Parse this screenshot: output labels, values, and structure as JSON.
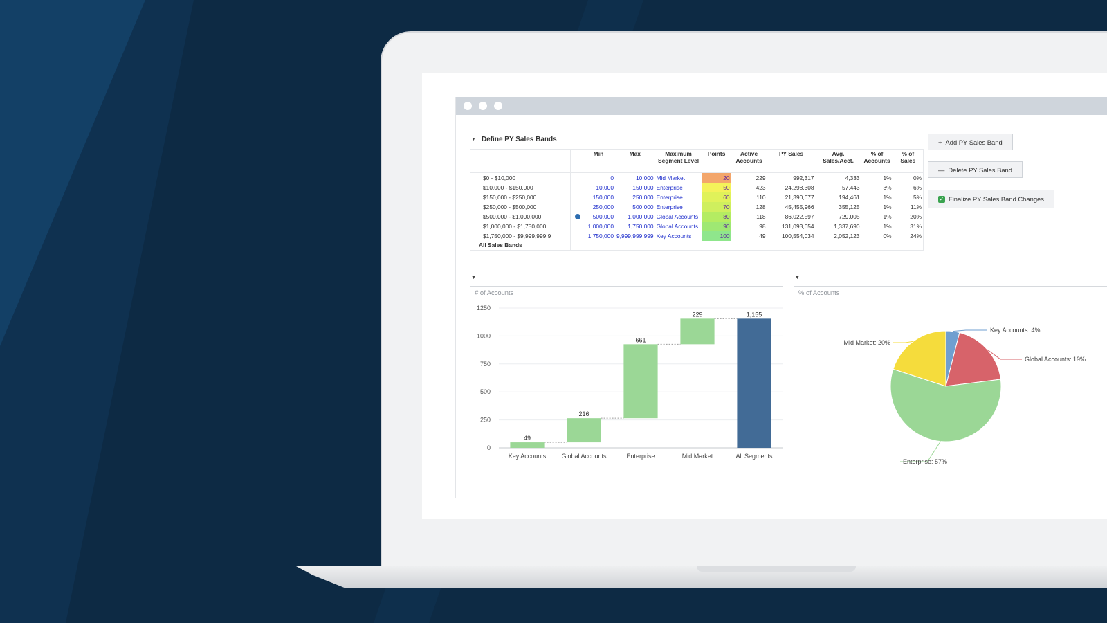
{
  "window": {
    "section_title": "Define PY Sales Bands"
  },
  "table": {
    "headers": [
      "",
      "",
      "Min",
      "Max",
      "Maximum Segment Level",
      "Points",
      "Active Accounts",
      "PY Sales",
      "Avg. Sales/Acct.",
      "% of Accounts",
      "% of Sales"
    ],
    "rows": [
      {
        "label": "$0 - $10,000",
        "min": "0",
        "max": "10,000",
        "segment": "Mid Market",
        "points": "20",
        "active": "229",
        "py_sales": "992,317",
        "avg": "4,333",
        "pct_acc": "1%",
        "pct_sales": "0%"
      },
      {
        "label": "$10,000 - $150,000",
        "min": "10,000",
        "max": "150,000",
        "segment": "Enterprise",
        "points": "50",
        "active": "423",
        "py_sales": "24,298,308",
        "avg": "57,443",
        "pct_acc": "3%",
        "pct_sales": "6%"
      },
      {
        "label": "$150,000 - $250,000",
        "min": "150,000",
        "max": "250,000",
        "segment": "Enterprise",
        "points": "60",
        "active": "110",
        "py_sales": "21,390,677",
        "avg": "194,461",
        "pct_acc": "1%",
        "pct_sales": "5%"
      },
      {
        "label": "$250,000 - $500,000",
        "min": "250,000",
        "max": "500,000",
        "segment": "Enterprise",
        "points": "70",
        "active": "128",
        "py_sales": "45,455,966",
        "avg": "355,125",
        "pct_acc": "1%",
        "pct_sales": "11%"
      },
      {
        "label": "$500,000 - $1,000,000",
        "min": "500,000",
        "max": "1,000,000",
        "segment": "Global Accounts",
        "points": "80",
        "active": "118",
        "py_sales": "86,022,597",
        "avg": "729,005",
        "pct_acc": "1%",
        "pct_sales": "20%"
      },
      {
        "label": "$1,000,000 - $1,750,000",
        "min": "1,000,000",
        "max": "1,750,000",
        "segment": "Global Accounts",
        "points": "90",
        "active": "98",
        "py_sales": "131,093,654",
        "avg": "1,337,690",
        "pct_acc": "1%",
        "pct_sales": "31%"
      },
      {
        "label": "$1,750,000 - $9,999,999,9",
        "min": "1,750,000",
        "max": "9,999,999,999",
        "segment": "Key Accounts",
        "points": "100",
        "active": "49",
        "py_sales": "100,554,034",
        "avg": "2,052,123",
        "pct_acc": "0%",
        "pct_sales": "24%"
      }
    ],
    "total_label": "All Sales Bands",
    "point_colors": [
      "#f3a66b",
      "#f4f25a",
      "#e0f25a",
      "#cfef5e",
      "#b4ec62",
      "#9fe873",
      "#8fe68c"
    ]
  },
  "buttons": {
    "add": "Add PY Sales Band",
    "delete": "Delete PY Sales Band",
    "finalize": "Finalize PY Sales Band Changes"
  },
  "chart_data": [
    {
      "type": "bar",
      "title": "# of Accounts",
      "categories": [
        "Key Accounts",
        "Global Accounts",
        "Enterprise",
        "Mid Market",
        "All Segments"
      ],
      "values": [
        49,
        216,
        661,
        229,
        1155
      ],
      "labels": [
        "49",
        "216",
        "661",
        "229",
        "1,155"
      ],
      "cumulative_start": [
        0,
        49,
        265,
        926,
        0
      ],
      "ylim": [
        0,
        1250
      ],
      "yticks": [
        0,
        250,
        500,
        750,
        1000,
        1250
      ],
      "colors": {
        "step": "#9bd796",
        "total": "#426b96"
      },
      "grid": true
    },
    {
      "type": "pie",
      "title": "% of Accounts",
      "slices": [
        {
          "name": "Key Accounts",
          "value": 4,
          "label": "Key Accounts: 4%",
          "color": "#6f9fd0"
        },
        {
          "name": "Global Accounts",
          "value": 19,
          "label": "Global Accounts: 19%",
          "color": "#d7636a"
        },
        {
          "name": "Enterprise",
          "value": 57,
          "label": "Enterprise: 57%",
          "color": "#9bd796"
        },
        {
          "name": "Mid Market",
          "value": 20,
          "label": "Mid Market: 20%",
          "color": "#f5dc3c"
        }
      ]
    }
  ]
}
